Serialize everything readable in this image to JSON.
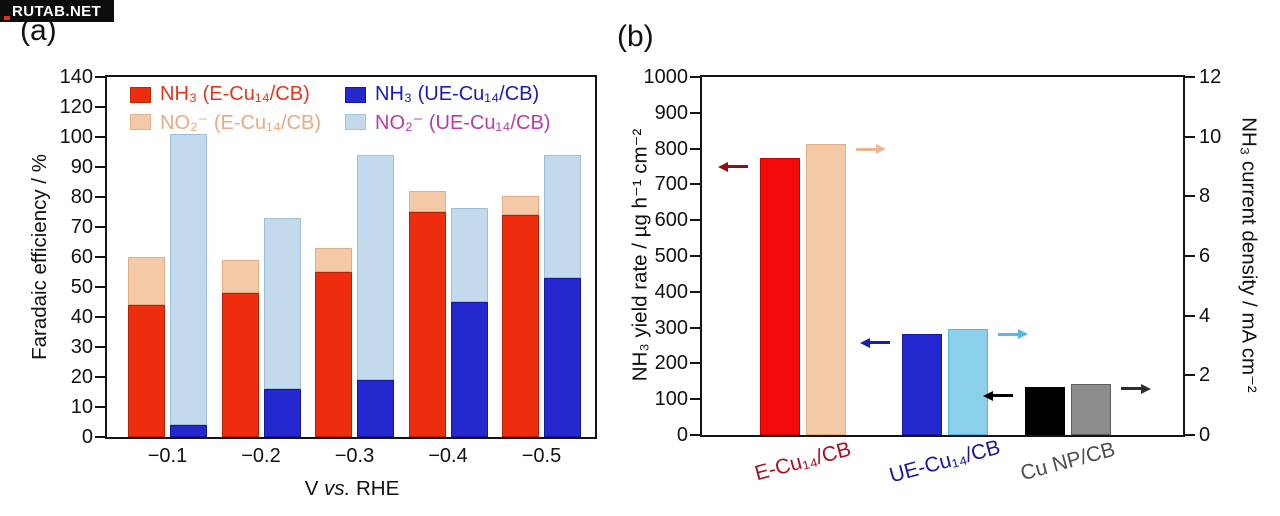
{
  "watermark": {
    "text": "RUTAB.NET",
    "bg": "#0d0d0d",
    "fg": "#ffffff",
    "accent": "#e03024"
  },
  "panels": {
    "a": {
      "label": "(a)",
      "ylabel": "Faradaic efficiency / %",
      "xlabel": {
        "pre": "V ",
        "italic": "vs.",
        "post": " RHE"
      },
      "legend": [
        {
          "label": "NH₃ (E-Cu₁₄/CB)",
          "swatch": "#ee2d0f",
          "swatch_border": "#c22505",
          "text_color": "#e2371c"
        },
        {
          "label": "NO₂⁻ (E-Cu₁₄/CB)",
          "swatch": "#f3c9a8",
          "swatch_border": "#e2b28b",
          "text_color": "#e9aa82"
        },
        {
          "label": "NH₃ (UE-Cu₁₄/CB)",
          "swatch": "#2527cf",
          "swatch_border": "#1517a6",
          "text_color": "#1a1ab9"
        },
        {
          "label": "NO₂⁻ (UE-Cu₁₄/CB)",
          "swatch": "#c3d9ec",
          "swatch_border": "#a6c4da",
          "text_color": "#b93ba5"
        }
      ]
    },
    "b": {
      "label": "(b)",
      "ylabel_left": "NH₃ yield rate / µg h⁻¹ cm⁻²",
      "ylabel_right": "NH₃ current density / mA cm⁻²"
    }
  },
  "chart_data": [
    {
      "panel": "a",
      "type": "bar",
      "variant": "grouped-stacked",
      "title": "Faradaic efficiencies at applied potentials",
      "xlabel": "V vs. RHE",
      "ylabel": "Faradaic efficiency / %",
      "categories": [
        "−0.1",
        "−0.2",
        "−0.3",
        "−0.4",
        "−0.5"
      ],
      "ylim": [
        0,
        140
      ],
      "yticks": [
        0,
        10,
        20,
        30,
        40,
        50,
        60,
        70,
        80,
        90,
        100,
        120,
        140
      ],
      "axis_note": "scale compressed above 100: ticks 120 and 140 at half spacing",
      "grid": false,
      "legend_position": "top-inside",
      "stacks": [
        {
          "name": "E-Cu₁₄/CB",
          "segments": [
            {
              "name": "NH₃ (E-Cu₁₄/CB)",
              "color": "#ee2d0f",
              "border": "#b91f04",
              "values": [
                44,
                48,
                55,
                75,
                74
              ]
            },
            {
              "name": "NO₂⁻ (E-Cu₁₄/CB)",
              "color": "#f3c9a8",
              "border": "#e0ae86",
              "values": [
                16,
                11,
                8,
                7,
                6.5
              ]
            }
          ],
          "totals": [
            60,
            59,
            63,
            82,
            80.5
          ]
        },
        {
          "name": "UE-Cu₁₄/CB",
          "segments": [
            {
              "name": "NH₃ (UE-Cu₁₄/CB)",
              "color": "#2527cf",
              "border": "#1416a0",
              "values": [
                4,
                16,
                19,
                45,
                53
              ]
            },
            {
              "name": "NO₂⁻ (UE-Cu₁₄/CB)",
              "color": "#c3d9ec",
              "border": "#9fc0d8",
              "values": [
                98,
                57,
                75,
                31.5,
                41
              ]
            }
          ],
          "totals": [
            102,
            73,
            94,
            76.5,
            94
          ]
        }
      ]
    },
    {
      "panel": "b",
      "type": "bar",
      "variant": "grouped-dual-axis",
      "title": "NH₃ yield rate and partial current density by catalyst",
      "categories": [
        "E-Cu₁₄/CB",
        "UE-Cu₁₄/CB",
        "Cu NP/CB"
      ],
      "category_colors": [
        "#a51020",
        "#18189b",
        "#4d4d4d"
      ],
      "left_axis": {
        "label": "NH₃ yield rate / µg h⁻¹ cm⁻²",
        "range": [
          0,
          1000
        ],
        "tick_step": 100
      },
      "right_axis": {
        "label": "NH₃ current density / mA cm⁻²",
        "range": [
          0,
          12
        ],
        "tick_step": 2
      },
      "grid": false,
      "series": [
        {
          "name": "NH₃ yield rate",
          "axis": "left",
          "values": [
            775,
            283,
            135
          ],
          "colors": [
            "#f30a0a",
            "#2527cf",
            "#000000"
          ],
          "borders": [
            "#c40404",
            "#15179e",
            "#000000"
          ],
          "arrow": "left",
          "arrow_colors": [
            "#8f1010",
            "#1c1cae",
            "#000000"
          ]
        },
        {
          "name": "NH₃ current density",
          "axis": "right",
          "values": [
            9.75,
            3.55,
            1.72
          ],
          "colors": [
            "#f3c9a8",
            "#8bd0ea",
            "#8c8c8c"
          ],
          "borders": [
            "#dfae85",
            "#5fb3d8",
            "#5e5e5e"
          ],
          "arrow": "right",
          "arrow_colors": [
            "#e9b88e",
            "#52b9e9",
            "#2e2e2e"
          ]
        }
      ]
    }
  ]
}
